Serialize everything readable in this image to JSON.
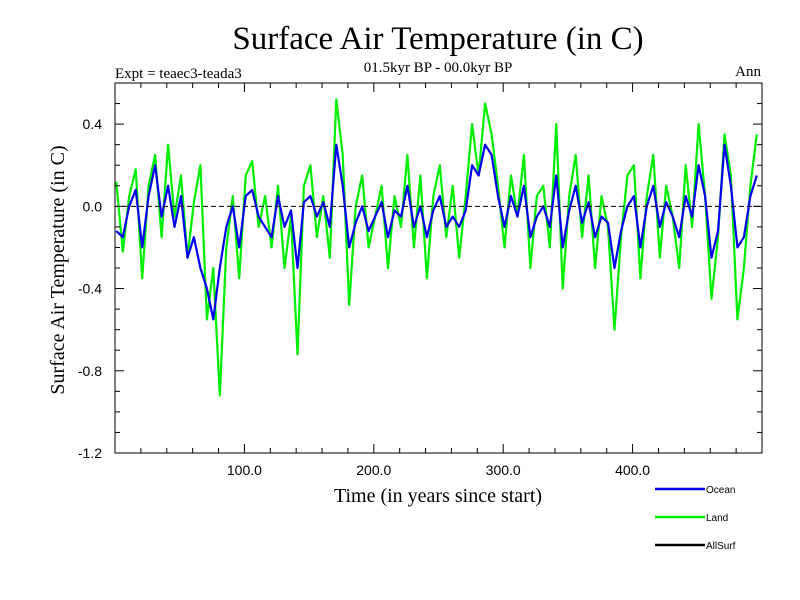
{
  "chart_data": {
    "type": "line",
    "title": "Surface Air Temperature (in C)",
    "subtitle": "01.5kyr BP - 00.0kyr BP",
    "experiment_label": "Expt = teaec3-teada3",
    "season_label": "Ann",
    "xlabel": "Time (in years since start)",
    "ylabel": "Surface Air Temperature (in C)",
    "xlim": [
      0,
      500
    ],
    "ylim": [
      -1.2,
      0.6
    ],
    "x_tick_values": [
      100,
      200,
      300,
      400
    ],
    "x_tick_labels": [
      "100.0",
      "200.0",
      "300.0",
      "400.0"
    ],
    "y_tick_values": [
      0.4,
      0.0,
      -0.4,
      -0.8,
      -1.2
    ],
    "y_tick_labels": [
      "0.4",
      "0.0",
      "-0.4",
      "-0.8",
      "-1.2"
    ],
    "zero_line": true,
    "series": [
      {
        "name": "Land",
        "color": "#00ee00",
        "x_start": 1,
        "x_step": 5,
        "values": [
          0.12,
          -0.22,
          0.05,
          0.18,
          -0.35,
          0.1,
          0.25,
          -0.15,
          0.3,
          -0.05,
          0.15,
          -0.25,
          0.02,
          0.2,
          -0.55,
          -0.3,
          -0.92,
          -0.2,
          0.05,
          -0.35,
          0.15,
          0.22,
          -0.1,
          0.05,
          -0.2,
          0.1,
          -0.3,
          -0.05,
          -0.72,
          0.1,
          0.2,
          -0.15,
          0.05,
          -0.25,
          0.52,
          0.25,
          -0.48,
          0.0,
          0.15,
          -0.2,
          -0.05,
          0.1,
          -0.3,
          0.05,
          -0.1,
          0.25,
          -0.2,
          0.15,
          -0.35,
          0.05,
          0.2,
          -0.15,
          0.1,
          -0.25,
          0.05,
          0.4,
          0.15,
          0.5,
          0.35,
          0.1,
          -0.2,
          0.15,
          -0.05,
          0.25,
          -0.3,
          0.05,
          0.1,
          -0.2,
          0.4,
          -0.4,
          0.05,
          0.25,
          -0.15,
          0.15,
          -0.3,
          0.05,
          -0.1,
          -0.6,
          -0.15,
          0.15,
          0.2,
          -0.35,
          0.05,
          0.25,
          -0.25,
          0.1,
          -0.05,
          -0.3,
          0.2,
          -0.1,
          0.4,
          0.05,
          -0.45,
          -0.15,
          0.35,
          0.15,
          -0.55,
          -0.3,
          0.1,
          0.35
        ]
      },
      {
        "name": "Ocean",
        "color": "#0000ee",
        "x_start": 1,
        "x_step": 5,
        "values": [
          -0.12,
          -0.15,
          0.0,
          0.08,
          -0.2,
          0.05,
          0.2,
          -0.05,
          0.1,
          -0.1,
          0.05,
          -0.25,
          -0.15,
          -0.3,
          -0.4,
          -0.55,
          -0.3,
          -0.1,
          0.0,
          -0.2,
          0.05,
          0.08,
          -0.05,
          -0.1,
          -0.15,
          0.05,
          -0.1,
          -0.02,
          -0.3,
          0.02,
          0.05,
          -0.05,
          0.02,
          -0.1,
          0.3,
          0.1,
          -0.2,
          -0.08,
          0.0,
          -0.12,
          -0.05,
          0.02,
          -0.15,
          -0.02,
          -0.05,
          0.1,
          -0.1,
          0.0,
          -0.15,
          -0.02,
          0.05,
          -0.1,
          -0.05,
          -0.1,
          -0.02,
          0.2,
          0.15,
          0.3,
          0.25,
          0.05,
          -0.1,
          0.05,
          -0.05,
          0.1,
          -0.15,
          -0.05,
          0.0,
          -0.1,
          0.15,
          -0.2,
          -0.02,
          0.1,
          -0.08,
          0.02,
          -0.15,
          -0.05,
          -0.08,
          -0.3,
          -0.12,
          0.0,
          0.05,
          -0.2,
          0.0,
          0.1,
          -0.1,
          0.02,
          -0.05,
          -0.15,
          0.05,
          -0.05,
          0.2,
          0.05,
          -0.25,
          -0.12,
          0.3,
          0.1,
          -0.2,
          -0.15,
          0.05,
          0.15
        ]
      },
      {
        "name": "AllSurf",
        "color": "#000000",
        "x_start": 1,
        "x_step": 5,
        "values": []
      }
    ],
    "legend": {
      "placement": "bottom-right",
      "items": [
        "Ocean",
        "Land",
        "AllSurf"
      ]
    }
  }
}
